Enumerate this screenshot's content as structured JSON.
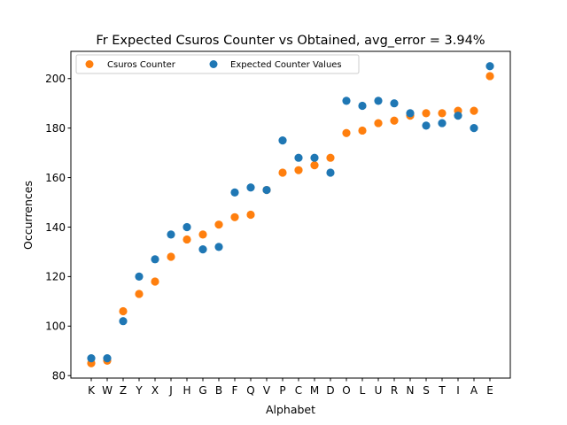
{
  "chart_data": {
    "type": "scatter",
    "title": "Fr Expected Csuros Counter vs Obtained, avg_error = 3.94%",
    "xlabel": "Alphabet",
    "ylabel": "Occurrences",
    "ylim": [
      79,
      211
    ],
    "yticks": [
      80,
      100,
      120,
      140,
      160,
      180,
      200
    ],
    "grid": false,
    "legend_position": "top-left",
    "categories": [
      "K",
      "W",
      "Z",
      "Y",
      "X",
      "J",
      "H",
      "G",
      "B",
      "F",
      "Q",
      "V",
      "P",
      "C",
      "M",
      "D",
      "O",
      "L",
      "U",
      "R",
      "N",
      "S",
      "T",
      "I",
      "A",
      "E"
    ],
    "series": [
      {
        "name": "Csuros Counter",
        "color": "#ff7f0e",
        "values": [
          85,
          86,
          106,
          113,
          118,
          128,
          135,
          137,
          141,
          144,
          145,
          155,
          162,
          163,
          165,
          168,
          178,
          179,
          182,
          183,
          185,
          186,
          186,
          187,
          187,
          201
        ]
      },
      {
        "name": "Expected Counter Values",
        "color": "#1f77b4",
        "values": [
          87,
          87,
          102,
          120,
          127,
          137,
          140,
          131,
          132,
          154,
          156,
          155,
          175,
          168,
          168,
          162,
          191,
          189,
          191,
          190,
          186,
          181,
          182,
          185,
          180,
          205
        ]
      }
    ]
  }
}
